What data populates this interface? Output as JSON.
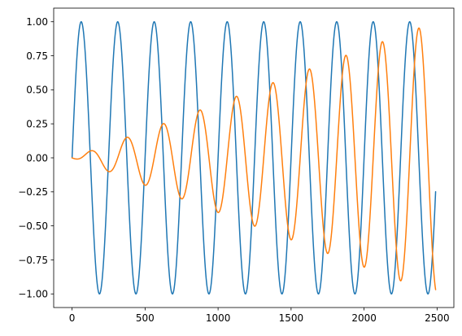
{
  "chart_data": {
    "type": "line",
    "title": "",
    "xlabel": "",
    "ylabel": "",
    "xlim": [
      -126,
      2615
    ],
    "ylim": [
      -1.1,
      1.1
    ],
    "grid": false,
    "legend": "none",
    "x_ticks": [
      0,
      500,
      1000,
      1500,
      2000,
      2500
    ],
    "x_tick_labels": [
      "0",
      "500",
      "1000",
      "1500",
      "2000",
      "2500"
    ],
    "y_ticks": [
      1.0,
      0.75,
      0.5,
      0.25,
      0.0,
      -0.25,
      -0.5,
      -0.75,
      -1.0
    ],
    "y_tick_labels": [
      "1.00",
      "0.75",
      "0.50",
      "0.25",
      "0.00",
      "−0.25",
      "−0.50",
      "−0.75",
      "−1.00"
    ],
    "series": [
      {
        "color": "#1f77b4",
        "formula": "sin(2*pi*x/250)",
        "x_range": [
          0,
          2490
        ],
        "period": 250,
        "amplitude": 1.0
      },
      {
        "color": "#ff7f0e",
        "formula": "(x/2490)*sin(2*pi*x/250 - pi/2)",
        "x_range": [
          0,
          2490
        ],
        "period": 250,
        "amplitude_growth": "linear, 0 to 1.0"
      }
    ]
  }
}
